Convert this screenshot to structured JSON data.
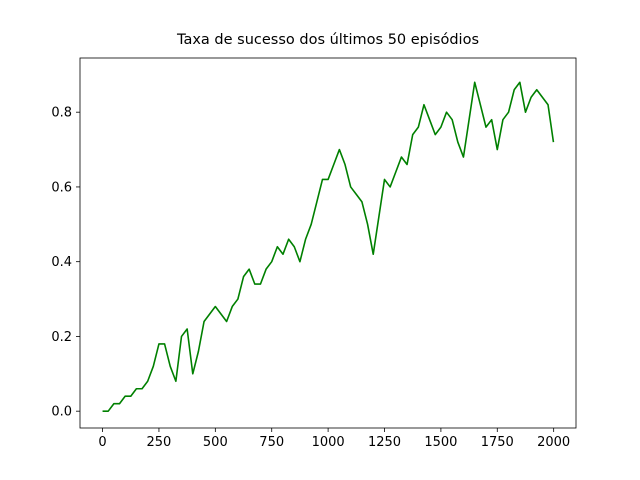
{
  "chart_data": {
    "type": "line",
    "title": "Taxa de sucesso dos últimos 50 episódios",
    "x": [
      0,
      25,
      50,
      75,
      100,
      125,
      150,
      175,
      200,
      225,
      250,
      275,
      300,
      325,
      350,
      375,
      400,
      425,
      450,
      475,
      500,
      525,
      550,
      575,
      600,
      625,
      650,
      675,
      700,
      725,
      750,
      775,
      800,
      825,
      850,
      875,
      900,
      925,
      950,
      975,
      1000,
      1025,
      1050,
      1075,
      1100,
      1125,
      1150,
      1175,
      1200,
      1225,
      1250,
      1275,
      1300,
      1325,
      1350,
      1375,
      1400,
      1425,
      1450,
      1475,
      1500,
      1525,
      1550,
      1575,
      1600,
      1625,
      1650,
      1675,
      1700,
      1725,
      1750,
      1775,
      1800,
      1825,
      1850,
      1875,
      1900,
      1925,
      1950,
      1975,
      1999
    ],
    "values": [
      0,
      0,
      0.02,
      0.02,
      0.04,
      0.04,
      0.06,
      0.06,
      0.08,
      0.12,
      0.18,
      0.18,
      0.12,
      0.08,
      0.2,
      0.22,
      0.1,
      0.16,
      0.24,
      0.26,
      0.28,
      0.26,
      0.24,
      0.28,
      0.3,
      0.36,
      0.38,
      0.34,
      0.34,
      0.38,
      0.4,
      0.44,
      0.42,
      0.46,
      0.44,
      0.4,
      0.46,
      0.5,
      0.56,
      0.62,
      0.62,
      0.66,
      0.7,
      0.66,
      0.6,
      0.58,
      0.56,
      0.5,
      0.42,
      0.52,
      0.62,
      0.6,
      0.64,
      0.68,
      0.66,
      0.74,
      0.76,
      0.82,
      0.78,
      0.74,
      0.76,
      0.8,
      0.78,
      0.72,
      0.68,
      0.78,
      0.88,
      0.82,
      0.76,
      0.78,
      0.7,
      0.78,
      0.8,
      0.86,
      0.88,
      0.8,
      0.84,
      0.86,
      0.84,
      0.82,
      0.72
    ],
    "color": "#008000",
    "xlim": [
      -100,
      2099
    ],
    "ylim": [
      -0.045,
      0.945
    ],
    "xticks": [
      0,
      250,
      500,
      750,
      1000,
      1250,
      1500,
      1750,
      2000
    ],
    "yticks": [
      {
        "value": 0,
        "label": "0.0"
      },
      0.2,
      0.4,
      0.6,
      0.8
    ],
    "grid": false
  }
}
